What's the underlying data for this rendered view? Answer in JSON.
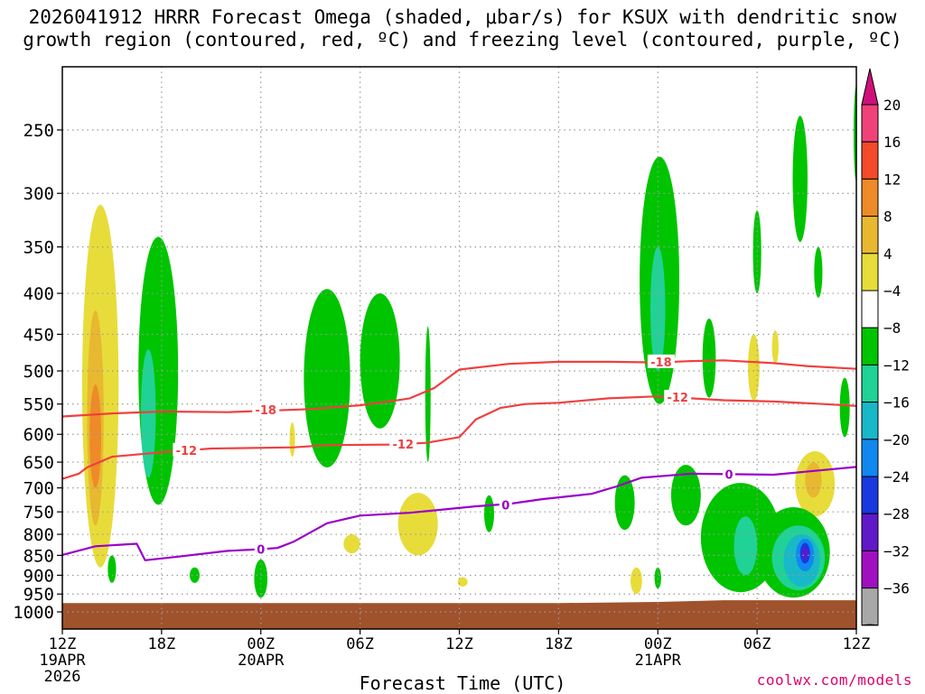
{
  "title_line1": "2026041912 HRRR Forecast Omega (shaded, μbar/s) for KSUX with dendritic snow",
  "title_line2": "growth region (contoured, red, ºC) and freezing level (contoured, purple, ºC)",
  "xlabel": "Forecast Time (UTC)",
  "credit": "coolwx.com/models",
  "colors": {
    "ground": "#a0522d",
    "dgz_contour": "#ef4040",
    "freezing_contour": "#9a00c8",
    "grid": "#9a9a9a"
  },
  "chart_data": {
    "type": "heatmap",
    "yaxis": {
      "label": "",
      "scale": "log-pressure",
      "range": [
        1050,
        200
      ],
      "ticks": [
        250,
        300,
        350,
        400,
        450,
        500,
        550,
        600,
        650,
        700,
        750,
        800,
        850,
        900,
        950,
        1000
      ]
    },
    "xaxis": {
      "label": "Forecast Time (UTC)",
      "range_hours": [
        0,
        48
      ],
      "ticks": [
        {
          "h": 0,
          "lines": [
            "12Z",
            "19APR",
            "2026"
          ]
        },
        {
          "h": 6,
          "lines": [
            "18Z"
          ]
        },
        {
          "h": 12,
          "lines": [
            "00Z",
            "20APR"
          ]
        },
        {
          "h": 18,
          "lines": [
            "06Z"
          ]
        },
        {
          "h": 24,
          "lines": [
            "12Z"
          ]
        },
        {
          "h": 30,
          "lines": [
            "18Z"
          ]
        },
        {
          "h": 36,
          "lines": [
            "00Z",
            "21APR"
          ]
        },
        {
          "h": 42,
          "lines": [
            "06Z"
          ]
        },
        {
          "h": 48,
          "lines": [
            "12Z"
          ]
        }
      ]
    },
    "grid": true,
    "colorbar": {
      "labels": [
        "20",
        "16",
        "12",
        "8",
        "4",
        "−4",
        "−8",
        "−12",
        "−16",
        "−20",
        "−24",
        "−28",
        "−32",
        "−36"
      ],
      "colors": [
        "#f0427a",
        "#f24a2a",
        "#ee8a28",
        "#e8b830",
        "#e8dc3a",
        "#ffffff",
        "#00c400",
        "#20d296",
        "#18b8c8",
        "#1088f0",
        "#1838e0",
        "#6018c8",
        "#a010c0",
        "#a8a8a8"
      ],
      "top_extend_color": "#d0107a",
      "bottom_extend_color": "#000000"
    },
    "contours": [
      {
        "name": "-18",
        "color": "#ef4040",
        "label": "-18",
        "label_h": 12.3,
        "points": [
          [
            0,
            570
          ],
          [
            3,
            565
          ],
          [
            6,
            562
          ],
          [
            10,
            563
          ],
          [
            15,
            558
          ],
          [
            18,
            552
          ],
          [
            20,
            545
          ],
          [
            21,
            541
          ],
          [
            22.5,
            525
          ],
          [
            24,
            498
          ],
          [
            27,
            490
          ],
          [
            30,
            487
          ],
          [
            33,
            487
          ],
          [
            36,
            488
          ],
          [
            38,
            486
          ],
          [
            40,
            485
          ],
          [
            43,
            489
          ],
          [
            45,
            493
          ],
          [
            48,
            497
          ]
        ]
      },
      {
        "name": "-12",
        "color": "#ef4040",
        "label": "-12",
        "label_h": 7.5,
        "points": [
          [
            0,
            682
          ],
          [
            1,
            672
          ],
          [
            1.5,
            660
          ],
          [
            3,
            640
          ],
          [
            6,
            632
          ],
          [
            9,
            625
          ],
          [
            14,
            623
          ],
          [
            16,
            619
          ],
          [
            20,
            618
          ],
          [
            22,
            615
          ],
          [
            24,
            605
          ],
          [
            25,
            575
          ],
          [
            26.5,
            556
          ],
          [
            28,
            550
          ],
          [
            30,
            548
          ],
          [
            33,
            541
          ],
          [
            36,
            538
          ],
          [
            38,
            541
          ],
          [
            40,
            544
          ],
          [
            43,
            546
          ],
          [
            46,
            550
          ],
          [
            48,
            553
          ]
        ]
      },
      {
        "name": "0",
        "color": "#9a00c8",
        "label": "0",
        "label_h": 12,
        "points": [
          [
            0,
            849
          ],
          [
            2,
            828
          ],
          [
            4.5,
            822
          ],
          [
            5,
            862
          ],
          [
            7,
            853
          ],
          [
            10,
            839
          ],
          [
            12,
            835
          ],
          [
            13,
            832
          ],
          [
            14,
            817
          ],
          [
            16,
            775
          ],
          [
            18,
            758
          ],
          [
            21,
            752
          ],
          [
            23,
            745
          ],
          [
            25,
            738
          ],
          [
            27,
            733
          ],
          [
            29,
            723
          ],
          [
            32,
            712
          ],
          [
            33.5,
            697
          ],
          [
            35,
            680
          ],
          [
            38,
            672
          ],
          [
            43,
            674
          ],
          [
            48,
            659
          ]
        ]
      }
    ],
    "label_texts": [
      {
        "text": "-18",
        "h": 12.3,
        "p": 559
      },
      {
        "text": "-12",
        "h": 7.5,
        "p": 628
      },
      {
        "text": "-12",
        "h": 20.6,
        "p": 617
      },
      {
        "text": "-18",
        "h": 36.2,
        "p": 487
      },
      {
        "text": "-12",
        "h": 37.2,
        "p": 539
      },
      {
        "text": "0",
        "h": 12,
        "p": 835
      },
      {
        "text": "0",
        "h": 26.8,
        "p": 735
      },
      {
        "text": "0",
        "h": 40.3,
        "p": 673
      }
    ],
    "omega_regions": [
      {
        "value": 4,
        "color": "#e8dc3a",
        "h": 2.3,
        "p_top": 310,
        "p_bot": 880,
        "w": 1.1
      },
      {
        "value": 8,
        "color": "#e8b830",
        "h": 2.0,
        "p_top": 420,
        "p_bot": 780,
        "w": 0.5
      },
      {
        "value": 12,
        "color": "#ee8a28",
        "h": 2.0,
        "p_top": 520,
        "p_bot": 700,
        "w": 0.35
      },
      {
        "value": -4,
        "color": "#00c400",
        "h": 5.8,
        "p_top": 340,
        "p_bot": 735,
        "w": 1.2
      },
      {
        "value": -8,
        "color": "#20d296",
        "h": 5.2,
        "p_top": 470,
        "p_bot": 680,
        "w": 0.45
      },
      {
        "value": -4,
        "color": "#00c400",
        "h": 3.0,
        "p_top": 850,
        "p_bot": 920,
        "w": 0.25
      },
      {
        "value": -4,
        "color": "#00c400",
        "h": 8.0,
        "p_top": 880,
        "p_bot": 920,
        "w": 0.3
      },
      {
        "value": -4,
        "color": "#00c400",
        "h": 12.0,
        "p_top": 860,
        "p_bot": 960,
        "w": 0.4
      },
      {
        "value": -4,
        "color": "#00c400",
        "h": 16.0,
        "p_top": 395,
        "p_bot": 660,
        "w": 1.4
      },
      {
        "value": -4,
        "color": "#00c400",
        "h": 19.2,
        "p_top": 400,
        "p_bot": 590,
        "w": 1.2
      },
      {
        "value": -4,
        "color": "#00c400",
        "h": 22.1,
        "p_top": 440,
        "p_bot": 650,
        "w": 0.15
      },
      {
        "value": 4,
        "color": "#e8dc3a",
        "h": 17.5,
        "p_top": 800,
        "p_bot": 845,
        "w": 0.5
      },
      {
        "value": 4,
        "color": "#e8dc3a",
        "h": 21.5,
        "p_top": 710,
        "p_bot": 850,
        "w": 1.2
      },
      {
        "value": -4,
        "color": "#00c400",
        "h": 25.8,
        "p_top": 715,
        "p_bot": 795,
        "w": 0.3
      },
      {
        "value": 4,
        "color": "#e8dc3a",
        "h": 13.9,
        "p_top": 580,
        "p_bot": 640,
        "w": 0.15
      },
      {
        "value": 4,
        "color": "#e8dc3a",
        "h": 24.2,
        "p_top": 905,
        "p_bot": 930,
        "w": 0.3
      },
      {
        "value": -4,
        "color": "#00c400",
        "h": 34.0,
        "p_top": 675,
        "p_bot": 790,
        "w": 0.6
      },
      {
        "value": 4,
        "color": "#e8dc3a",
        "h": 35.2,
        "p_top": 320,
        "p_bot": 380,
        "w": 0.15
      },
      {
        "value": -4,
        "color": "#00c400",
        "h": 36.1,
        "p_top": 270,
        "p_bot": 550,
        "w": 1.2
      },
      {
        "value": -8,
        "color": "#20d296",
        "h": 36.0,
        "p_top": 350,
        "p_bot": 500,
        "w": 0.45
      },
      {
        "value": -4,
        "color": "#00c400",
        "h": 37.7,
        "p_top": 655,
        "p_bot": 780,
        "w": 0.9
      },
      {
        "value": -4,
        "color": "#00c400",
        "h": 39.1,
        "p_top": 430,
        "p_bot": 540,
        "w": 0.4
      },
      {
        "value": -4,
        "color": "#00c400",
        "h": 36.0,
        "p_top": 880,
        "p_bot": 935,
        "w": 0.2
      },
      {
        "value": 4,
        "color": "#e8dc3a",
        "h": 34.7,
        "p_top": 880,
        "p_bot": 950,
        "w": 0.35
      },
      {
        "value": -4,
        "color": "#00c400",
        "h": 42.0,
        "p_top": 315,
        "p_bot": 400,
        "w": 0.25
      },
      {
        "value": -4,
        "color": "#00c400",
        "h": 44.6,
        "p_top": 240,
        "p_bot": 345,
        "w": 0.45
      },
      {
        "value": -4,
        "color": "#00c400",
        "h": 45.7,
        "p_top": 350,
        "p_bot": 405,
        "w": 0.25
      },
      {
        "value": 4,
        "color": "#e8dc3a",
        "h": 41.8,
        "p_top": 450,
        "p_bot": 545,
        "w": 0.35
      },
      {
        "value": 4,
        "color": "#e8dc3a",
        "h": 43.1,
        "p_top": 445,
        "p_bot": 490,
        "w": 0.2
      },
      {
        "value": 4,
        "color": "#e8dc3a",
        "h": 45.5,
        "p_top": 630,
        "p_bot": 760,
        "w": 1.2
      },
      {
        "value": 8,
        "color": "#e8b830",
        "h": 45.4,
        "p_top": 650,
        "p_bot": 720,
        "w": 0.5
      },
      {
        "value": -4,
        "color": "#00c400",
        "h": 47.3,
        "p_top": 510,
        "p_bot": 605,
        "w": 0.3
      },
      {
        "value": -4,
        "color": "#00c400",
        "h": 48.0,
        "p_top": 220,
        "p_bot": 290,
        "w": 0.15
      },
      {
        "value": -4,
        "color": "#00c400",
        "h": 41.0,
        "p_top": 690,
        "p_bot": 945,
        "w": 2.4
      },
      {
        "value": -4,
        "color": "#00c400",
        "h": 44.2,
        "p_top": 740,
        "p_bot": 960,
        "w": 2.2
      },
      {
        "value": -8,
        "color": "#20d296",
        "h": 41.3,
        "p_top": 760,
        "p_bot": 900,
        "w": 0.7
      },
      {
        "value": -8,
        "color": "#20d296",
        "h": 44.5,
        "p_top": 780,
        "p_bot": 940,
        "w": 1.6
      },
      {
        "value": -12,
        "color": "#18b8c8",
        "h": 44.7,
        "p_top": 800,
        "p_bot": 930,
        "w": 1.1
      },
      {
        "value": -16,
        "color": "#1088f0",
        "h": 44.9,
        "p_top": 810,
        "p_bot": 890,
        "w": 0.55
      },
      {
        "value": -24,
        "color": "#1838e0",
        "h": 44.9,
        "p_top": 820,
        "p_bot": 870,
        "w": 0.3
      },
      {
        "value": -28,
        "color": "#6018c8",
        "h": 44.9,
        "p_top": 830,
        "p_bot": 860,
        "w": 0.18
      }
    ]
  }
}
